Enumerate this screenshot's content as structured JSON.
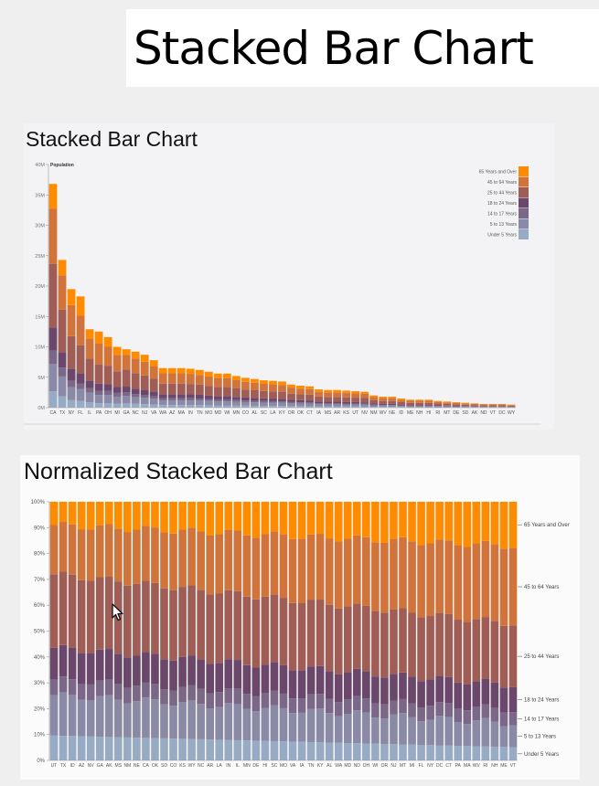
{
  "page": {
    "title": "Stacked Bar Chart"
  },
  "chart_data": [
    {
      "type": "bar",
      "stacked": true,
      "title": "Stacked Bar Chart",
      "ylabel": "Population",
      "ylim": [
        0,
        40000000
      ],
      "yticks": [
        0,
        5000000,
        10000000,
        15000000,
        20000000,
        25000000,
        30000000,
        35000000,
        40000000
      ],
      "ytick_labels": [
        "0M",
        "5M",
        "10M",
        "15M",
        "20M",
        "25M",
        "30M",
        "35M",
        "40M"
      ],
      "legend_position": "top-right",
      "legend": [
        "65 Years and Over",
        "45 to 64 Years",
        "25 to 44 Years",
        "18 to 24 Years",
        "14 to 17 Years",
        "5 to 13 Years",
        "Under 5 Years"
      ],
      "categories": [
        "CA",
        "TX",
        "NY",
        "FL",
        "IL",
        "PA",
        "OH",
        "MI",
        "GA",
        "NC",
        "NJ",
        "VA",
        "WA",
        "AZ",
        "MA",
        "IN",
        "TN",
        "MO",
        "MD",
        "WI",
        "MN",
        "CO",
        "AL",
        "SC",
        "LA",
        "KY",
        "OR",
        "OK",
        "CT",
        "IA",
        "MS",
        "AR",
        "KS",
        "UT",
        "NV",
        "NM",
        "WV",
        "NE",
        "ID",
        "ME",
        "NH",
        "HI",
        "RI",
        "MT",
        "DE",
        "SD",
        "AK",
        "ND",
        "VT",
        "DC",
        "WY"
      ],
      "totals": [
        36.8,
        24.3,
        19.5,
        18.3,
        12.9,
        12.5,
        11.6,
        10.0,
        9.6,
        9.2,
        8.7,
        7.8,
        6.5,
        6.5,
        6.5,
        6.4,
        6.2,
        5.9,
        5.6,
        5.6,
        5.2,
        4.9,
        4.7,
        4.5,
        4.4,
        4.3,
        3.8,
        3.6,
        3.5,
        3.0,
        2.9,
        2.9,
        2.8,
        2.7,
        2.6,
        2.0,
        1.8,
        1.8,
        1.5,
        1.3,
        1.3,
        1.3,
        1.1,
        1.0,
        0.9,
        0.8,
        0.7,
        0.6,
        0.6,
        0.6,
        0.5
      ],
      "series_shares_pct": [
        {
          "name": "Under 5 Years",
          "values": [
            7.3,
            7.7,
            6.3,
            6.2,
            7.0,
            5.8,
            6.5,
            6.3,
            7.2,
            6.9
          ]
        },
        {
          "name": "5 to 13 Years",
          "values": [
            12.3,
            13.4,
            11.0,
            10.4,
            12.0,
            10.8,
            11.6,
            11.8,
            12.9,
            12.0
          ]
        },
        {
          "name": "14 to 17 Years",
          "values": [
            5.9,
            6.0,
            5.5,
            5.2,
            5.7,
            5.6,
            5.8,
            6.1,
            5.9,
            5.4
          ]
        },
        {
          "name": "18 to 24 Years",
          "values": [
            10.3,
            10.4,
            9.9,
            9.0,
            10.0,
            9.4,
            9.6,
            9.6,
            10.0,
            9.3
          ]
        },
        {
          "name": "25 to 44 Years",
          "values": [
            28.5,
            28.8,
            27.6,
            25.4,
            27.6,
            25.4,
            26.0,
            26.0,
            29.5,
            28.1
          ]
        },
        {
          "name": "45 to 64 Years",
          "values": [
            24.6,
            23.3,
            26.2,
            26.5,
            25.6,
            27.7,
            26.7,
            27.1,
            24.5,
            26.1
          ]
        },
        {
          "name": "65 Years and Over",
          "values": [
            11.1,
            10.4,
            13.5,
            17.4,
            12.1,
            15.3,
            13.8,
            13.1,
            10.0,
            12.2
          ]
        }
      ]
    },
    {
      "type": "bar",
      "stacked": true,
      "normalized": true,
      "title": "Normalized Stacked Bar Chart",
      "ylim": [
        0,
        1
      ],
      "ytick_labels": [
        "0%",
        "10%",
        "20%",
        "30%",
        "40%",
        "50%",
        "60%",
        "70%",
        "80%",
        "90%",
        "100%"
      ],
      "series_labels_position": "right",
      "categories": [
        "UT",
        "TX",
        "ID",
        "AZ",
        "NV",
        "GA",
        "AK",
        "MS",
        "NM",
        "NE",
        "CA",
        "OK",
        "SD",
        "CO",
        "KS",
        "WY",
        "NC",
        "AR",
        "LA",
        "IN",
        "IL",
        "MN",
        "DE",
        "HI",
        "SC",
        "MO",
        "VA",
        "IA",
        "TN",
        "KY",
        "AL",
        "WA",
        "MD",
        "ND",
        "OH",
        "WI",
        "OR",
        "NJ",
        "MT",
        "MI",
        "FL",
        "NY",
        "DC",
        "CT",
        "PA",
        "MA",
        "WV",
        "RI",
        "NH",
        "ME",
        "VT"
      ],
      "series_names": [
        "Under 5 Years",
        "5 to 13 Years",
        "14 to 17 Years",
        "18 to 24 Years",
        "25 to 44 Years",
        "45 to 64 Years",
        "65 Years and Over"
      ],
      "cumulative_boundaries_pct_sample": [
        {
          "category": "UT",
          "boundaries": [
            9.6,
            25.2,
            31.3,
            43.5,
            72.0,
            91.0,
            100
          ]
        },
        {
          "category": "VT",
          "boundaries": [
            5.1,
            14.3,
            19.5,
            29.2,
            52.9,
            83.0,
            100
          ]
        }
      ]
    }
  ]
}
